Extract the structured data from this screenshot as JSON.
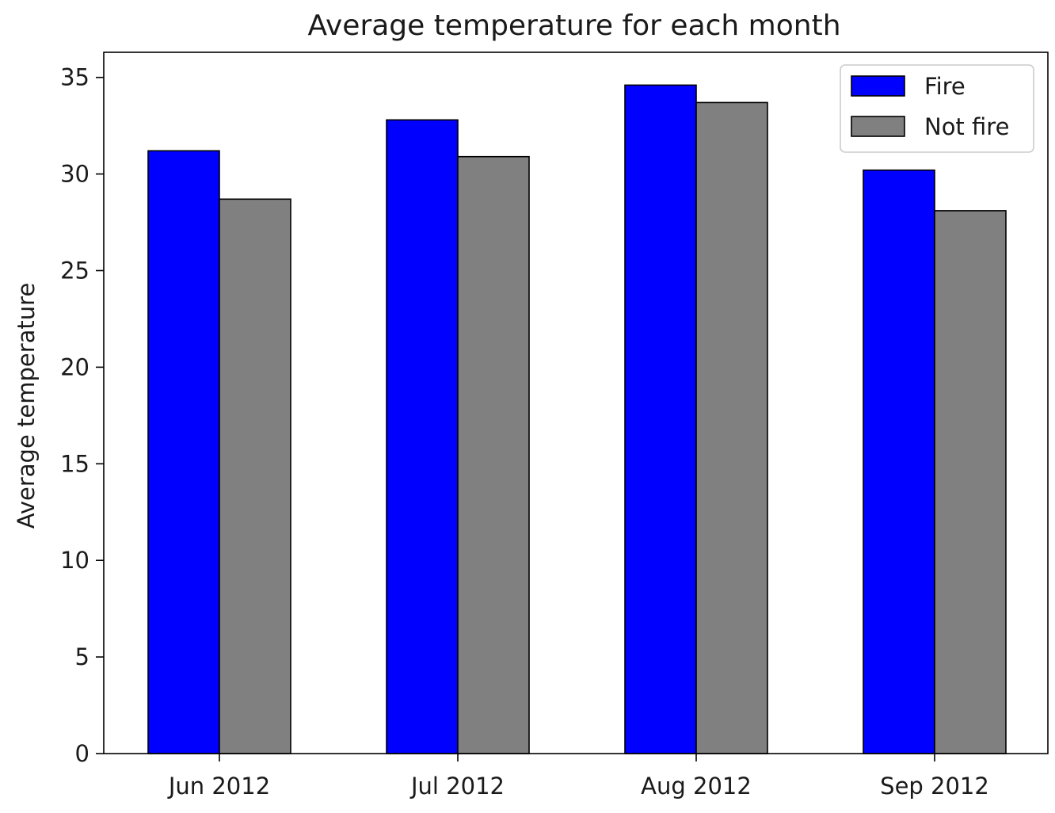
{
  "chart_data": {
    "type": "bar",
    "title": "Average temperature for each month",
    "xlabel": "",
    "ylabel": "Average temperature",
    "categories": [
      "Jun 2012",
      "Jul 2012",
      "Aug 2012",
      "Sep 2012"
    ],
    "series": [
      {
        "name": "Fire",
        "values": [
          31.2,
          32.8,
          34.6,
          30.2
        ],
        "color": "#0000ff"
      },
      {
        "name": "Not fire",
        "values": [
          28.7,
          30.9,
          33.7,
          28.1
        ],
        "color": "#808080"
      }
    ],
    "ylim": [
      0,
      36.3
    ],
    "yticks": [
      0,
      5,
      10,
      15,
      20,
      25,
      30,
      35
    ],
    "grid": false,
    "legend_position": "top-right",
    "bar_edge_color": "#000000"
  }
}
